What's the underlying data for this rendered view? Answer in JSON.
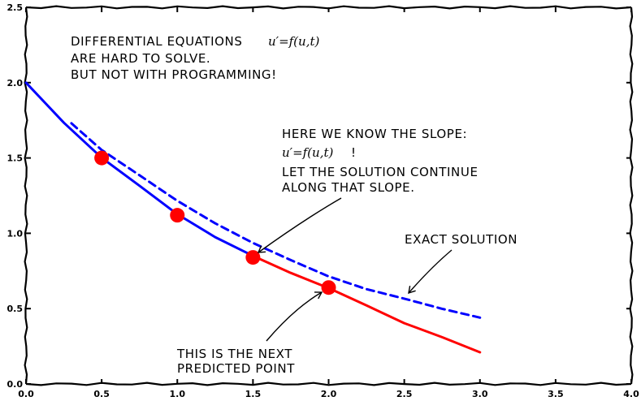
{
  "chart_data": {
    "type": "line",
    "xlim": [
      0,
      4
    ],
    "ylim": [
      0,
      2.5
    ],
    "x_ticks": [
      0,
      0.5,
      1,
      1.5,
      2,
      2.5,
      3,
      3.5,
      4
    ],
    "y_ticks": [
      0,
      0.5,
      1,
      1.5,
      2,
      2.5
    ],
    "x_tick_labels": [
      "0.0",
      "0.5",
      "1.0",
      "1.5",
      "2.0",
      "2.5",
      "3.0",
      "3.5",
      "4.0"
    ],
    "y_tick_labels": [
      "0.0",
      "0.5",
      "1.0",
      "1.5",
      "2.0",
      "2.5"
    ],
    "grid": false,
    "series": [
      {
        "name": "",
        "style": "solid",
        "color": "#0000ff",
        "x": [
          0,
          0.25,
          0.5,
          0.75,
          1.0,
          1.25,
          1.5
        ],
        "y": [
          2.0,
          1.74,
          1.5,
          1.31,
          1.13,
          0.98,
          0.85
        ]
      },
      {
        "name": "",
        "style": "solid",
        "color": "#ff0000",
        "x": [
          1.5,
          1.75,
          2.0,
          2.25,
          2.5,
          2.75,
          3.0
        ],
        "y": [
          0.85,
          0.74,
          0.63,
          0.52,
          0.41,
          0.31,
          0.21
        ]
      },
      {
        "name": "exact solution",
        "style": "dashed",
        "color": "#0000ff",
        "x": [
          0.3,
          0.5,
          0.75,
          1.0,
          1.25,
          1.5,
          1.75,
          2.0,
          2.25,
          2.5,
          2.75,
          3.0
        ],
        "y": [
          1.73,
          1.55,
          1.38,
          1.22,
          1.07,
          0.93,
          0.82,
          0.72,
          0.63,
          0.56,
          0.5,
          0.44
        ]
      }
    ],
    "points": {
      "color": "#ff0000",
      "x": [
        0.5,
        1.0,
        1.5,
        2.0
      ],
      "y": [
        1.5,
        1.12,
        0.84,
        0.64
      ]
    }
  },
  "annotations": {
    "title_line1": "DIFFERENTIAL EQUATIONS",
    "title_math": "u′=f(u,t)",
    "title_line2": "ARE HARD TO SOLVE.",
    "title_line3": "BUT NOT WITH PROGRAMMING!",
    "slope_line1": "HERE WE KNOW THE SLOPE:",
    "slope_math": "u′=f(u,t)",
    "slope_math_suffix": "!",
    "slope_line3": "LET THE SOLUTION CONTINUE",
    "slope_line4": "ALONG THAT SLOPE.",
    "exact_label": "EXACT SOLUTION",
    "predict_line1": "THIS IS THE NEXT",
    "predict_line2": "PREDICTED POINT"
  }
}
